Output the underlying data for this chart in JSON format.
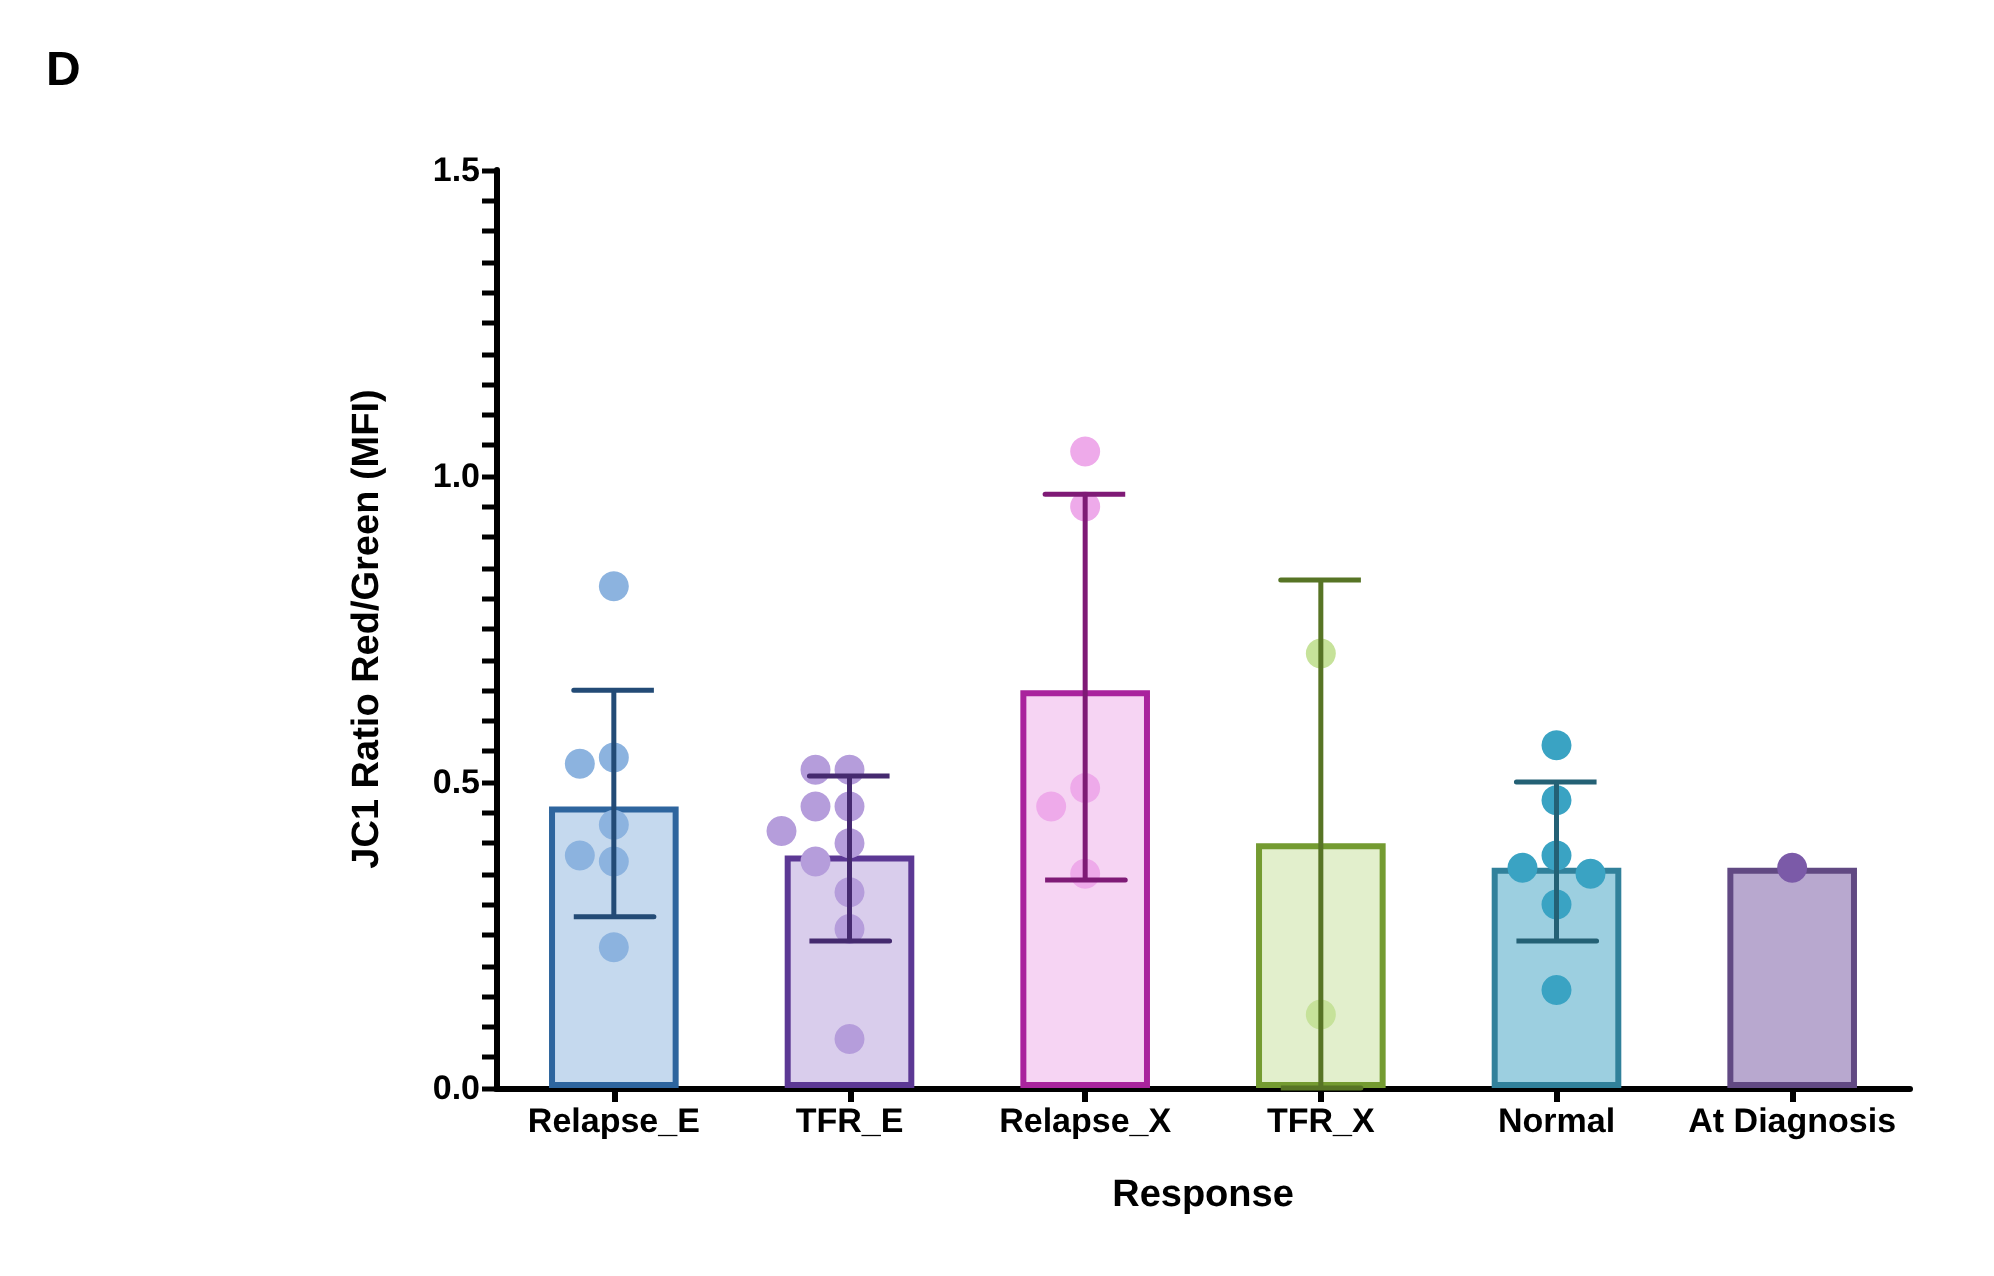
{
  "chart_data": {
    "type": "bar",
    "title": "D",
    "xlabel": "Response",
    "ylabel": "JC1 Ratio Red/Green (MFI)",
    "categories": [
      "Relapse_E",
      "TFR_E",
      "Relapse_X",
      "TFR_X",
      "Normal",
      "At Diagnosis"
    ],
    "ylim": [
      0,
      1.5
    ],
    "yticks": [
      {
        "value": 0,
        "label": "0.0"
      },
      {
        "value": 0.05,
        "label": null
      },
      {
        "value": 0.1,
        "label": null
      },
      {
        "value": 0.15,
        "label": null
      },
      {
        "value": 0.2,
        "label": null
      },
      {
        "value": 0.25,
        "label": null
      },
      {
        "value": 0.3,
        "label": null
      },
      {
        "value": 0.35,
        "label": null
      },
      {
        "value": 0.4,
        "label": null
      },
      {
        "value": 0.45,
        "label": null
      },
      0.5,
      {
        "value": 0.55,
        "label": null
      },
      {
        "value": 0.6,
        "label": null
      },
      {
        "value": 0.65,
        "label": null
      },
      {
        "value": 0.7,
        "label": null
      },
      {
        "value": 0.75,
        "label": null
      },
      {
        "value": 0.8,
        "label": null
      },
      {
        "value": 0.85,
        "label": null
      },
      {
        "value": 0.9,
        "label": null
      },
      {
        "value": 0.95,
        "label": null
      },
      {
        "value": 1,
        "label": "1.0"
      },
      {
        "value": 1.05,
        "label": null
      },
      {
        "value": 1.1,
        "label": null
      },
      {
        "value": 1.15,
        "label": null
      },
      {
        "value": 1.2,
        "label": null
      },
      {
        "value": 1.25,
        "label": null
      },
      {
        "value": 1.3,
        "label": null
      },
      {
        "value": 1.35,
        "label": null
      },
      {
        "value": 1.4,
        "label": null
      },
      {
        "value": 1.45,
        "label": null
      },
      1.5
    ],
    "grid": false,
    "series": [
      {
        "values": [
          0.46,
          0.38,
          0.65,
          0.4,
          0.36,
          0.36
        ],
        "colors": [
          "#c5d9ee",
          "#d9cdec",
          "#f6d4f3",
          "#e2efcc",
          "#9ccfe0",
          "#b8a8cf"
        ],
        "errors": [
          [
            0.28,
            0.65
          ],
          [
            0.24,
            0.51
          ],
          [
            0.34,
            0.97
          ],
          [
            0,
            0.83
          ],
          [
            0.24,
            0.5
          ],
          null
        ]
      },
      {
        "type": "scatter",
        "marker": "circle",
        "x": [
          "Relapse_E",
          "Relapse_E",
          "Relapse_E",
          "Relapse_E",
          "Relapse_E",
          "Relapse_E",
          "Relapse_E",
          "TFR_E",
          "TFR_E",
          "TFR_E",
          "TFR_E",
          "TFR_E",
          "TFR_E",
          "TFR_E",
          "TFR_E",
          "TFR_E",
          "TFR_E",
          "Relapse_X",
          "Relapse_X",
          "Relapse_X",
          "Relapse_X",
          "Relapse_X",
          "TFR_X",
          "TFR_X",
          "Normal",
          "Normal",
          "Normal",
          "Normal",
          "Normal",
          "Normal",
          "Normal",
          "At Diagnosis"
        ],
        "values": [
          0.82,
          0.54,
          0.53,
          0.43,
          0.37,
          0.38,
          0.23,
          0.52,
          0.52,
          0.46,
          0.46,
          0.4,
          0.42,
          0.37,
          0.32,
          0.26,
          0.08,
          1.04,
          0.95,
          0.49,
          0.46,
          0.35,
          0.71,
          0.12,
          0.56,
          0.47,
          0.38,
          0.36,
          0.35,
          0.3,
          0.16,
          0.36
        ],
        "colors": [
          "#8cb3df",
          "#8cb3df",
          "#8cb3df",
          "#8cb3df",
          "#8cb3df",
          "#8cb3df",
          "#8cb3df",
          "#b59ddb",
          "#b59ddb",
          "#b59ddb",
          "#b59ddb",
          "#b59ddb",
          "#b59ddb",
          "#b59ddb",
          "#b59ddb",
          "#b59ddb",
          "#b59ddb",
          "#eeaaea",
          "#eeaaea",
          "#eeaaea",
          "#eeaaea",
          "#eeaaea",
          "#c6e29a",
          "#c6e29a",
          "#3aa3c3",
          "#3aa3c3",
          "#3aa3c3",
          "#3aa3c3",
          "#3aa3c3",
          "#3aa3c3",
          "#3aa3c3",
          "#7b5aa8"
        ]
      }
    ]
  }
}
